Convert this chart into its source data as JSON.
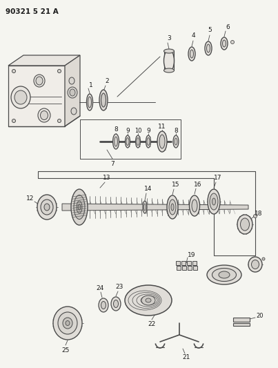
{
  "title": "90321 5 21 A",
  "bg_color": "#f5f5f0",
  "fig_width": 4.03,
  "fig_height": 5.33,
  "dpi": 100,
  "line_color": "#4a4a4a",
  "label_color": "#1a1a1a"
}
